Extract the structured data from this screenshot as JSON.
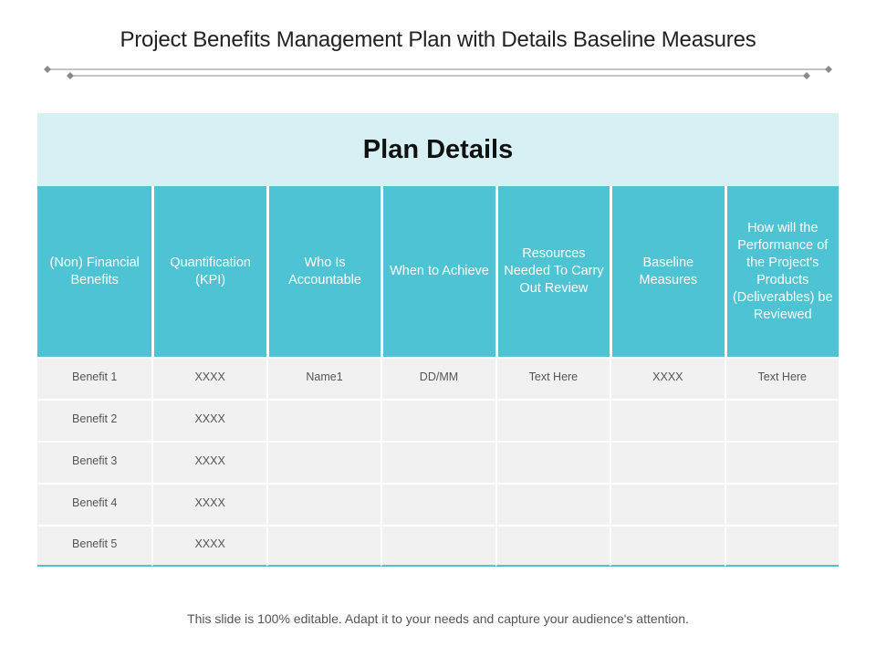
{
  "page": {
    "title": "Project Benefits Management Plan with Details Baseline Measures",
    "footer": "This slide is 100% editable. Adapt it to your needs and capture your audience's attention."
  },
  "colors": {
    "header_teal": "#4dc3d4",
    "banner_light": "#d6f0f4",
    "cell_gray": "#f1f1f1"
  },
  "table": {
    "banner": "Plan Details",
    "columns": [
      "(Non) Financial Benefits",
      "Quantification (KPI)",
      "Who Is Accountable",
      "When to Achieve",
      "Resources Needed To Carry Out Review",
      "Baseline Measures",
      "How will the Performance of the Project's Products (Deliverables) be Reviewed"
    ],
    "rows": [
      [
        "Benefit 1",
        "XXXX",
        "Name1",
        "DD/MM",
        "Text Here",
        "XXXX",
        "Text Here"
      ],
      [
        "Benefit 2",
        "XXXX",
        "",
        "",
        "",
        "",
        ""
      ],
      [
        "Benefit 3",
        "XXXX",
        "",
        "",
        "",
        "",
        ""
      ],
      [
        "Benefit 4",
        "XXXX",
        "",
        "",
        "",
        "",
        ""
      ],
      [
        "Benefit 5",
        "XXXX",
        "",
        "",
        "",
        "",
        ""
      ]
    ]
  }
}
